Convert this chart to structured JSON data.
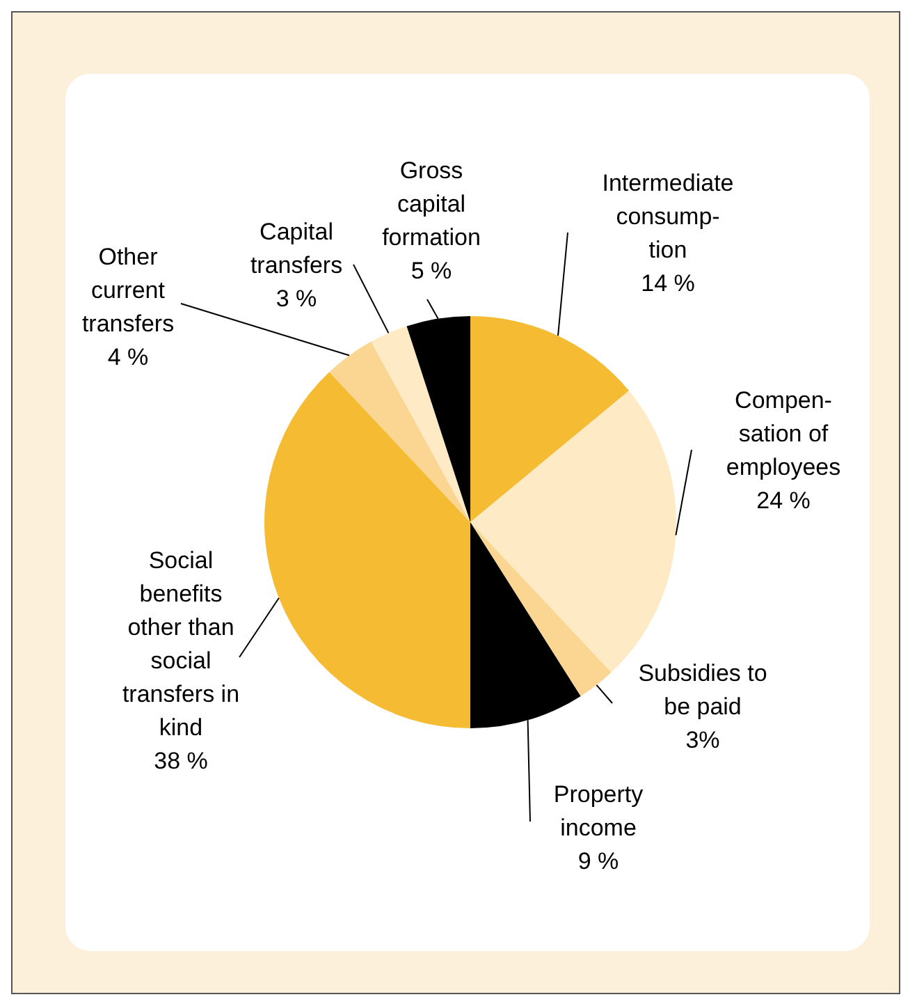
{
  "chart_data": {
    "type": "pie",
    "categories": [
      "Intermediate\nconsump-\ntion",
      "Compen-\nsation of\nemployees",
      "Subsidies to\nbe paid",
      "Property\nincome",
      "Social\nbenefits\nother than\nsocial\ntransfers in\nkind",
      "Other\ncurrent\ntransfers",
      "Capital\ntransfers",
      "Gross\ncapital\nformation"
    ],
    "values": [
      14,
      24,
      3,
      9,
      38,
      4,
      3,
      5
    ],
    "value_labels": [
      "14 %",
      "24 %",
      "3%",
      "9 %",
      "38 %",
      "4 %",
      "3 %",
      "5 %"
    ],
    "colors": [
      "#f5bb33",
      "#feeac5",
      "#fbd692",
      "#000000",
      "#f5bb33",
      "#fbd692",
      "#feeac5",
      "#000000"
    ]
  }
}
